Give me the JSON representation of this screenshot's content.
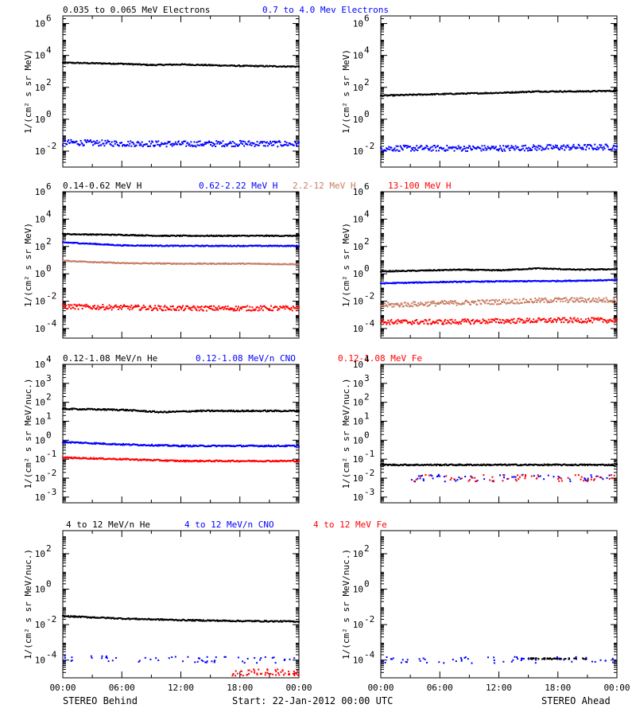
{
  "colors": {
    "black": "#000000",
    "blue": "#0000ff",
    "salmon": "#c87d64",
    "red": "#ff0000"
  },
  "footer": {
    "left": "STEREO Behind",
    "center": "Start: 22-Jan-2012 00:00 UTC",
    "right": "STEREO Ahead"
  },
  "time_ticks": [
    "00:00",
    "06:00",
    "12:00",
    "18:00",
    "00:00"
  ],
  "chart_data": [
    {
      "type": "scatter",
      "log_y": true,
      "ylim": [
        0.001,
        3000000
      ],
      "ylabel": "1/(cm² s sr MeV)",
      "yticks": [
        {
          "v": 1000000.0,
          "m": "10",
          "e": "6"
        },
        {
          "v": 10000.0,
          "m": "10",
          "e": "4"
        },
        {
          "v": 100,
          "m": "10",
          "e": "2"
        },
        {
          "v": 1,
          "m": "10",
          "e": "0"
        },
        {
          "v": 0.01,
          "m": "10",
          "e": "-2"
        }
      ],
      "legend": [
        {
          "label": "0.035 to 0.065 MeV Electrons",
          "color": "#000000"
        },
        {
          "label": "0.7 to 4.0 Mev Electrons",
          "color": "#0000ff"
        }
      ],
      "series": [
        {
          "name": "0.035 to 0.065 MeV Electrons",
          "color": "#000000",
          "side": "behind",
          "x": [
            0,
            6,
            9,
            12,
            18,
            24
          ],
          "y": [
            3500,
            3000,
            2500,
            2700,
            2200,
            2000
          ]
        },
        {
          "name": "0.7 to 4.0 Mev Electrons",
          "color": "#0000ff",
          "side": "behind",
          "x": [
            0,
            6,
            12,
            18,
            24
          ],
          "y": [
            0.035,
            0.03,
            0.028,
            0.03,
            0.028
          ]
        },
        {
          "name": "0.035 to 0.065 MeV Electrons",
          "color": "#000000",
          "side": "ahead",
          "x": [
            0,
            4,
            8,
            12,
            16,
            20,
            24
          ],
          "y": [
            30,
            35,
            40,
            45,
            55,
            55,
            60
          ]
        },
        {
          "name": "0.7 to 4.0 Mev Electrons",
          "color": "#0000ff",
          "side": "ahead",
          "x": [
            0,
            6,
            12,
            18,
            24
          ],
          "y": [
            0.015,
            0.015,
            0.015,
            0.017,
            0.018
          ]
        }
      ]
    },
    {
      "type": "scatter",
      "log_y": true,
      "ylim": [
        2e-05,
        1000000
      ],
      "ylabel": "1/(cm² s sr MeV)",
      "yticks": [
        {
          "v": 1000000.0,
          "m": "10",
          "e": "6"
        },
        {
          "v": 10000.0,
          "m": "10",
          "e": "4"
        },
        {
          "v": 100,
          "m": "10",
          "e": "2"
        },
        {
          "v": 1,
          "m": "10",
          "e": "0"
        },
        {
          "v": 0.01,
          "m": "10",
          "e": "-2"
        },
        {
          "v": 0.0001,
          "m": "10",
          "e": "-4"
        }
      ],
      "legend": [
        {
          "label": "0.14-0.62 MeV H",
          "color": "#000000"
        },
        {
          "label": "0.62-2.22 MeV H",
          "color": "#0000ff"
        },
        {
          "label": "2.2-12 MeV H",
          "color": "#c87d64"
        },
        {
          "label": "13-100 MeV H",
          "color": "#ff0000"
        }
      ],
      "series": [
        {
          "name": "0.14-0.62 MeV H",
          "color": "#000000",
          "side": "behind",
          "x": [
            0,
            6,
            10,
            14,
            24
          ],
          "y": [
            800,
            700,
            600,
            600,
            600
          ]
        },
        {
          "name": "0.62-2.22 MeV H",
          "color": "#0000ff",
          "side": "behind",
          "x": [
            0,
            6,
            12,
            18,
            24
          ],
          "y": [
            200,
            120,
            110,
            110,
            110
          ]
        },
        {
          "name": "2.2-12 MeV H",
          "color": "#c87d64",
          "side": "behind",
          "x": [
            0,
            6,
            12,
            18,
            24
          ],
          "y": [
            9,
            6,
            5.5,
            5.5,
            5
          ]
        },
        {
          "name": "13-100 MeV H",
          "color": "#ff0000",
          "side": "behind",
          "x": [
            0,
            6,
            12,
            18,
            24
          ],
          "y": [
            0.004,
            0.0035,
            0.003,
            0.003,
            0.003
          ]
        },
        {
          "name": "0.14-0.62 MeV H",
          "color": "#000000",
          "side": "ahead",
          "x": [
            0,
            4,
            8,
            12,
            16,
            20,
            24
          ],
          "y": [
            1.5,
            1.7,
            2,
            1.8,
            2.5,
            2,
            2.2
          ]
        },
        {
          "name": "0.62-2.22 MeV H",
          "color": "#0000ff",
          "side": "ahead",
          "x": [
            0,
            6,
            12,
            18,
            24
          ],
          "y": [
            0.2,
            0.25,
            0.28,
            0.3,
            0.35
          ]
        },
        {
          "name": "2.2-12 MeV H",
          "color": "#c87d64",
          "side": "ahead",
          "x": [
            0,
            6,
            12,
            18,
            24
          ],
          "y": [
            0.005,
            0.007,
            0.009,
            0.012,
            0.012
          ]
        },
        {
          "name": "13-100 MeV H",
          "color": "#ff0000",
          "side": "ahead",
          "x": [
            0,
            6,
            12,
            18,
            24
          ],
          "y": [
            0.0003,
            0.0003,
            0.00035,
            0.0004,
            0.0004
          ]
        }
      ]
    },
    {
      "type": "scatter",
      "log_y": true,
      "ylim": [
        0.0005,
        10000
      ],
      "ylabel": "1/(cm² s sr MeV/nuc.)",
      "yticks": [
        {
          "v": 10000.0,
          "m": "10",
          "e": "4"
        },
        {
          "v": 1000.0,
          "m": "10",
          "e": "3"
        },
        {
          "v": 100,
          "m": "10",
          "e": "2"
        },
        {
          "v": 10,
          "m": "10",
          "e": "1"
        },
        {
          "v": 1,
          "m": "10",
          "e": "0"
        },
        {
          "v": 0.1,
          "m": "10",
          "e": "-1"
        },
        {
          "v": 0.01,
          "m": "10",
          "e": "-2"
        },
        {
          "v": 0.001,
          "m": "10",
          "e": "-3"
        }
      ],
      "legend": [
        {
          "label": "0.12-1.08 MeV/n He",
          "color": "#000000"
        },
        {
          "label": "0.12-1.08 MeV/n CNO",
          "color": "#0000ff"
        },
        {
          "label": "0.12-1.08 MeV Fe",
          "color": "#ff0000"
        }
      ],
      "series": [
        {
          "name": "0.12-1.08 MeV/n He",
          "color": "#000000",
          "side": "behind",
          "x": [
            0,
            6,
            10,
            14,
            24
          ],
          "y": [
            45,
            40,
            30,
            35,
            35
          ]
        },
        {
          "name": "0.12-1.08 MeV/n CNO",
          "color": "#0000ff",
          "side": "behind",
          "x": [
            0,
            6,
            12,
            18,
            24
          ],
          "y": [
            0.8,
            0.6,
            0.5,
            0.5,
            0.5
          ]
        },
        {
          "name": "0.12-1.08 MeV Fe",
          "color": "#ff0000",
          "side": "behind",
          "x": [
            0,
            6,
            12,
            18,
            24
          ],
          "y": [
            0.12,
            0.1,
            0.08,
            0.08,
            0.08
          ]
        },
        {
          "name": "0.12-1.08 MeV/n He",
          "color": "#000000",
          "side": "ahead",
          "x": [
            0,
            6,
            12,
            18,
            24
          ],
          "y": [
            0.05,
            0.05,
            0.05,
            0.05,
            0.05
          ]
        },
        {
          "name": "0.12-1.08 MeV/n CNO",
          "color": "#0000ff",
          "side": "ahead",
          "x": [
            3,
            24
          ],
          "y": [
            0.01,
            0.01
          ]
        },
        {
          "name": "0.12-1.08 MeV Fe",
          "color": "#ff0000",
          "side": "ahead",
          "x": [
            3,
            24
          ],
          "y": [
            0.01,
            0.01
          ]
        }
      ]
    },
    {
      "type": "scatter",
      "log_y": true,
      "ylim": [
        1e-05,
        2000
      ],
      "ylabel": "1/(cm² s sr MeV/nuc.)",
      "yticks": [
        {
          "v": 100,
          "m": "10",
          "e": "2"
        },
        {
          "v": 1,
          "m": "10",
          "e": "0"
        },
        {
          "v": 0.01,
          "m": "10",
          "e": "-2"
        },
        {
          "v": 0.0001,
          "m": "10",
          "e": "-4"
        }
      ],
      "legend": [
        {
          "label": "4 to 12 MeV/n He",
          "color": "#000000"
        },
        {
          "label": "4 to 12 MeV/n CNO",
          "color": "#0000ff"
        },
        {
          "label": "4 to 12 MeV Fe",
          "color": "#ff0000"
        }
      ],
      "series": [
        {
          "name": "4 to 12 MeV/n He",
          "color": "#000000",
          "side": "behind",
          "x": [
            0,
            6,
            12,
            18,
            24
          ],
          "y": [
            0.03,
            0.022,
            0.018,
            0.016,
            0.015
          ]
        },
        {
          "name": "4 to 12 MeV/n CNO",
          "color": "#0000ff",
          "side": "behind",
          "x": [
            0,
            24
          ],
          "y": [
            0.00012,
            0.0001
          ]
        },
        {
          "name": "4 to 12 MeV Fe",
          "color": "#ff0000",
          "side": "behind",
          "x": [
            17,
            24
          ],
          "y": [
            2e-05,
            2e-05
          ]
        },
        {
          "name": "4 to 12 MeV/n He",
          "color": "#000000",
          "side": "ahead",
          "x": [
            15,
            21
          ],
          "y": [
            0.00012,
            0.00012
          ]
        },
        {
          "name": "4 to 12 MeV/n CNO",
          "color": "#0000ff",
          "side": "ahead",
          "x": [
            0,
            24
          ],
          "y": [
            0.0001,
            0.0001
          ]
        }
      ]
    }
  ]
}
